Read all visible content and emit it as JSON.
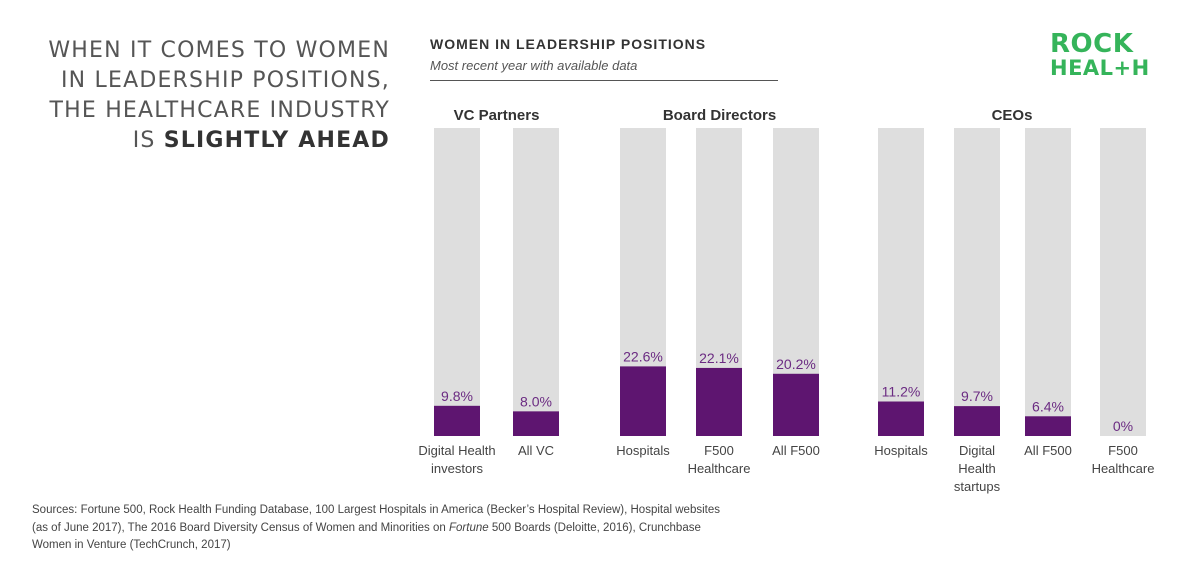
{
  "headline": {
    "line1": "WHEN IT COMES TO WOMEN",
    "line2": "IN LEADERSHIP POSITIONS,",
    "line3": "THE HEALTHCARE INDUSTRY",
    "line4_prefix": "IS ",
    "line4_bold": "SLIGHTLY AHEAD"
  },
  "logo": {
    "line1": "ROCK",
    "line2": "HEAL+H"
  },
  "sources": {
    "part1": "Sources: Fortune 500, Rock Health Funding Database, 100 Largest Hospitals in America (Becker’s Hospital Review), Hospital websites (as of June 2017), The 2016 Board Diversity Census of Women and Minorities on ",
    "italic": "Fortune",
    "part2": " 500 Boards (Deloitte, 2016), Crunchbase Women in Venture (TechCrunch, 2017)"
  },
  "colors": {
    "bar": "#5e1570",
    "track": "#dedede",
    "value_label": "#6b2b82"
  },
  "chart_data": {
    "type": "bar",
    "title": "WOMEN IN LEADERSHIP POSITIONS",
    "subtitle": "Most recent year with available data",
    "ylim": [
      0,
      100
    ],
    "grid": false,
    "groups": [
      {
        "name": "VC Partners",
        "bars": [
          {
            "label": [
              "Digital Health",
              "investors"
            ],
            "value": 9.8,
            "display": "9.8%"
          },
          {
            "label": [
              "All VC"
            ],
            "value": 8.0,
            "display": "8.0%"
          }
        ]
      },
      {
        "name": "Board Directors",
        "bars": [
          {
            "label": [
              "Hospitals"
            ],
            "value": 22.6,
            "display": "22.6%"
          },
          {
            "label": [
              "F500",
              "Healthcare"
            ],
            "value": 22.1,
            "display": "22.1%"
          },
          {
            "label": [
              "All F500"
            ],
            "value": 20.2,
            "display": "20.2%"
          }
        ]
      },
      {
        "name": "CEOs",
        "bars": [
          {
            "label": [
              "Hospitals"
            ],
            "value": 11.2,
            "display": "11.2%"
          },
          {
            "label": [
              "Digital",
              "Health",
              "startups"
            ],
            "value": 9.7,
            "display": "9.7%"
          },
          {
            "label": [
              "All F500"
            ],
            "value": 6.4,
            "display": "6.4%"
          },
          {
            "label": [
              "F500",
              "Healthcare"
            ],
            "value": 0,
            "display": "0%"
          }
        ]
      }
    ]
  }
}
